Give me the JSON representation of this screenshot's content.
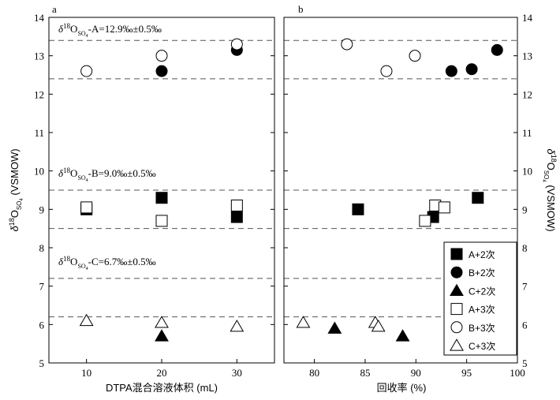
{
  "chart_data": [
    {
      "panel": "a",
      "type": "scatter",
      "xlabel": "DTPA混合溶液体积 (mL)",
      "ylabel": "δ18OSO4 (VSMOW)",
      "xticks": [
        "10",
        "20",
        "30"
      ],
      "xlim": [
        5,
        35
      ],
      "ylim": [
        5,
        14
      ],
      "yticks": [
        "5",
        "6",
        "7",
        "8",
        "9",
        "10",
        "11",
        "12",
        "13",
        "14"
      ],
      "reference_bands": [
        {
          "label": "δ18OSO4-A=12.9‰±0.5‰",
          "lower": 12.4,
          "upper": 13.4
        },
        {
          "label": "δ18OSO4-B=9.0‰±0.5‰",
          "lower": 8.5,
          "upper": 9.5
        },
        {
          "label": "δ18OSO4-C=6.7‰±0.5‰",
          "lower": 6.2,
          "upper": 7.2
        }
      ],
      "series": [
        {
          "name": "A+2次",
          "marker": "square-filled",
          "points": [
            [
              10,
              9.0
            ],
            [
              20,
              9.3
            ],
            [
              30,
              8.8
            ]
          ]
        },
        {
          "name": "B+2次",
          "marker": "circle-filled",
          "points": [
            [
              20,
              12.6
            ],
            [
              30,
              13.15
            ]
          ]
        },
        {
          "name": "C+2次",
          "marker": "triangle-filled",
          "points": [
            [
              20,
              5.7
            ]
          ]
        },
        {
          "name": "A+3次",
          "marker": "square-open",
          "points": [
            [
              10,
              9.05
            ],
            [
              20,
              8.7
            ],
            [
              30,
              9.1
            ]
          ]
        },
        {
          "name": "B+3次",
          "marker": "circle-open",
          "points": [
            [
              10,
              12.6
            ],
            [
              20,
              13.0
            ],
            [
              30,
              13.3
            ]
          ]
        },
        {
          "name": "C+3次",
          "marker": "triangle-open",
          "points": [
            [
              10,
              6.1
            ],
            [
              20,
              6.05
            ],
            [
              30,
              5.95
            ]
          ]
        }
      ]
    },
    {
      "panel": "b",
      "type": "scatter",
      "xlabel": "回收率 (%)",
      "ylabel": "δ18OSO4 (VSMOW)",
      "xticks": [
        "80",
        "85",
        "90",
        "95",
        "100"
      ],
      "xlim": [
        77,
        100
      ],
      "ylim": [
        5,
        14
      ],
      "yticks": [
        "5",
        "6",
        "7",
        "8",
        "9",
        "10",
        "11",
        "12",
        "13",
        "14"
      ],
      "reference_bands": [
        {
          "lower": 12.4,
          "upper": 13.4
        },
        {
          "lower": 8.5,
          "upper": 9.5
        },
        {
          "lower": 6.2,
          "upper": 7.2
        }
      ],
      "series": [
        {
          "name": "A+2次",
          "marker": "square-filled",
          "points": [
            [
              84.3,
              9.0
            ],
            [
              91.7,
              8.8
            ],
            [
              96.1,
              9.3
            ]
          ]
        },
        {
          "name": "B+2次",
          "marker": "circle-filled",
          "points": [
            [
              93.5,
              12.6
            ],
            [
              95.5,
              12.65
            ],
            [
              98.0,
              13.15
            ]
          ]
        },
        {
          "name": "C+2次",
          "marker": "triangle-filled",
          "points": [
            [
              82.0,
              5.9
            ],
            [
              88.7,
              5.7
            ]
          ]
        },
        {
          "name": "A+3次",
          "marker": "square-open",
          "points": [
            [
              90.9,
              8.7
            ],
            [
              91.9,
              9.1
            ],
            [
              92.8,
              9.05
            ]
          ]
        },
        {
          "name": "B+3次",
          "marker": "circle-open",
          "points": [
            [
              83.2,
              13.3
            ],
            [
              87.1,
              12.6
            ],
            [
              89.9,
              13.0
            ]
          ]
        },
        {
          "name": "C+3次",
          "marker": "triangle-open",
          "points": [
            [
              78.9,
              6.05
            ],
            [
              86.0,
              6.05
            ],
            [
              86.3,
              5.95
            ]
          ]
        }
      ],
      "legend": {
        "position": "bottom-right",
        "entries": [
          "A+2次",
          "B+2次",
          "C+2次",
          "A+3次",
          "B+3次",
          "C+3次"
        ]
      }
    }
  ]
}
